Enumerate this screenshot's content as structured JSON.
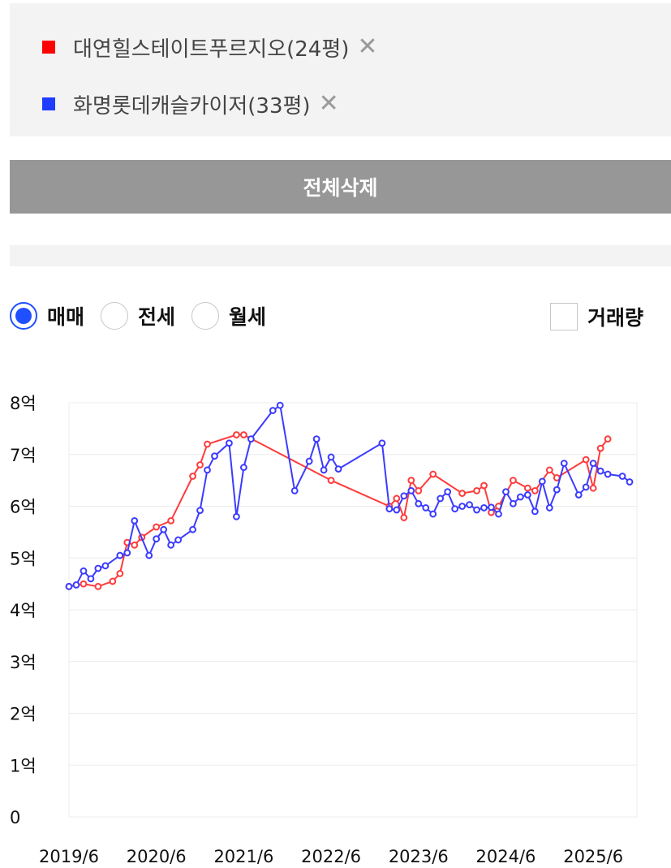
{
  "compare_list": {
    "items": [
      {
        "name": "대연힐스테이트푸르지오(24평)",
        "color": "#ff0000",
        "remove_icon": "close-icon"
      },
      {
        "name": "화명롯데캐슬카이저(33평)",
        "color": "#1f3cff",
        "remove_icon": "close-icon"
      }
    ],
    "delete_all_label": "전체삭제"
  },
  "filters": {
    "options": [
      {
        "label": "매매",
        "selected": true
      },
      {
        "label": "전세",
        "selected": false
      },
      {
        "label": "월세",
        "selected": false
      }
    ],
    "volume_label": "거래량",
    "volume_checked": false
  },
  "chart_data": {
    "type": "line",
    "y_unit": "억",
    "ylim": [
      0,
      8
    ],
    "y_ticks": [
      "0",
      "1억",
      "2억",
      "3억",
      "4억",
      "5억",
      "6억",
      "7억",
      "8억"
    ],
    "x_ticks": [
      "2019/6",
      "2020/6",
      "2021/6",
      "2022/6",
      "2023/6",
      "2024/6",
      "2025/6"
    ],
    "x_range": [
      "2019/6",
      "2025/12"
    ],
    "grid": true,
    "series": [
      {
        "name": "대연힐스테이트푸르지오(24평)",
        "color": "#ff3b3b",
        "points": [
          [
            "2019/6",
            4.45
          ],
          [
            "2019/8",
            4.5
          ],
          [
            "2019/10",
            4.45
          ],
          [
            "2019/12",
            4.55
          ],
          [
            "2020/1",
            4.7
          ],
          [
            "2020/2",
            5.3
          ],
          [
            "2020/3",
            5.25
          ],
          [
            "2020/4",
            5.4
          ],
          [
            "2020/6",
            5.6
          ],
          [
            "2020/8",
            5.72
          ],
          [
            "2020/11",
            6.58
          ],
          [
            "2020/12",
            6.8
          ],
          [
            "2021/1",
            7.2
          ],
          [
            "2021/5",
            7.38
          ],
          [
            "2021/6",
            7.38
          ],
          [
            "2022/6",
            6.5
          ],
          [
            "2023/2",
            6.0
          ],
          [
            "2023/3",
            6.15
          ],
          [
            "2023/4",
            5.78
          ],
          [
            "2023/5",
            6.5
          ],
          [
            "2023/6",
            6.3
          ],
          [
            "2023/8",
            6.62
          ],
          [
            "2023/12",
            6.25
          ],
          [
            "2024/2",
            6.3
          ],
          [
            "2024/3",
            6.4
          ],
          [
            "2024/4",
            5.88
          ],
          [
            "2024/5",
            6.0
          ],
          [
            "2024/7",
            6.5
          ],
          [
            "2024/9",
            6.35
          ],
          [
            "2024/10",
            6.3
          ],
          [
            "2024/12",
            6.7
          ],
          [
            "2025/1",
            6.55
          ],
          [
            "2025/5",
            6.9
          ],
          [
            "2025/6",
            6.35
          ],
          [
            "2025/7",
            7.12
          ],
          [
            "2025/8",
            7.3
          ]
        ]
      },
      {
        "name": "화명롯데캐슬카이저(33평)",
        "color": "#3b3bff",
        "points": [
          [
            "2019/6",
            4.45
          ],
          [
            "2019/7",
            4.48
          ],
          [
            "2019/8",
            4.75
          ],
          [
            "2019/9",
            4.6
          ],
          [
            "2019/10",
            4.8
          ],
          [
            "2019/11",
            4.85
          ],
          [
            "2020/1",
            5.05
          ],
          [
            "2020/2",
            5.1
          ],
          [
            "2020/3",
            5.72
          ],
          [
            "2020/5",
            5.05
          ],
          [
            "2020/6",
            5.37
          ],
          [
            "2020/7",
            5.55
          ],
          [
            "2020/8",
            5.25
          ],
          [
            "2020/9",
            5.35
          ],
          [
            "2020/11",
            5.55
          ],
          [
            "2020/12",
            5.92
          ],
          [
            "2021/1",
            6.7
          ],
          [
            "2021/2",
            6.97
          ],
          [
            "2021/4",
            7.22
          ],
          [
            "2021/5",
            5.8
          ],
          [
            "2021/6",
            6.75
          ],
          [
            "2021/7",
            7.3
          ],
          [
            "2021/10",
            7.85
          ],
          [
            "2021/11",
            7.95
          ],
          [
            "2022/1",
            6.3
          ],
          [
            "2022/3",
            6.87
          ],
          [
            "2022/4",
            7.3
          ],
          [
            "2022/5",
            6.7
          ],
          [
            "2022/6",
            6.95
          ],
          [
            "2022/7",
            6.72
          ],
          [
            "2023/1",
            7.22
          ],
          [
            "2023/2",
            5.95
          ],
          [
            "2023/3",
            5.93
          ],
          [
            "2023/4",
            6.2
          ],
          [
            "2023/5",
            6.3
          ],
          [
            "2023/6",
            6.05
          ],
          [
            "2023/7",
            5.97
          ],
          [
            "2023/8",
            5.85
          ],
          [
            "2023/9",
            6.15
          ],
          [
            "2023/10",
            6.28
          ],
          [
            "2023/11",
            5.95
          ],
          [
            "2023/12",
            6.0
          ],
          [
            "2024/1",
            6.03
          ],
          [
            "2024/2",
            5.93
          ],
          [
            "2024/3",
            5.97
          ],
          [
            "2024/4",
            5.98
          ],
          [
            "2024/5",
            5.85
          ],
          [
            "2024/6",
            6.28
          ],
          [
            "2024/7",
            6.05
          ],
          [
            "2024/8",
            6.18
          ],
          [
            "2024/9",
            6.22
          ],
          [
            "2024/10",
            5.9
          ],
          [
            "2024/11",
            6.48
          ],
          [
            "2024/12",
            5.97
          ],
          [
            "2025/1",
            6.32
          ],
          [
            "2025/2",
            6.83
          ],
          [
            "2025/4",
            6.22
          ],
          [
            "2025/5",
            6.37
          ],
          [
            "2025/6",
            6.83
          ],
          [
            "2025/7",
            6.68
          ],
          [
            "2025/8",
            6.62
          ],
          [
            "2025/10",
            6.58
          ],
          [
            "2025/11",
            6.47
          ]
        ]
      }
    ]
  }
}
